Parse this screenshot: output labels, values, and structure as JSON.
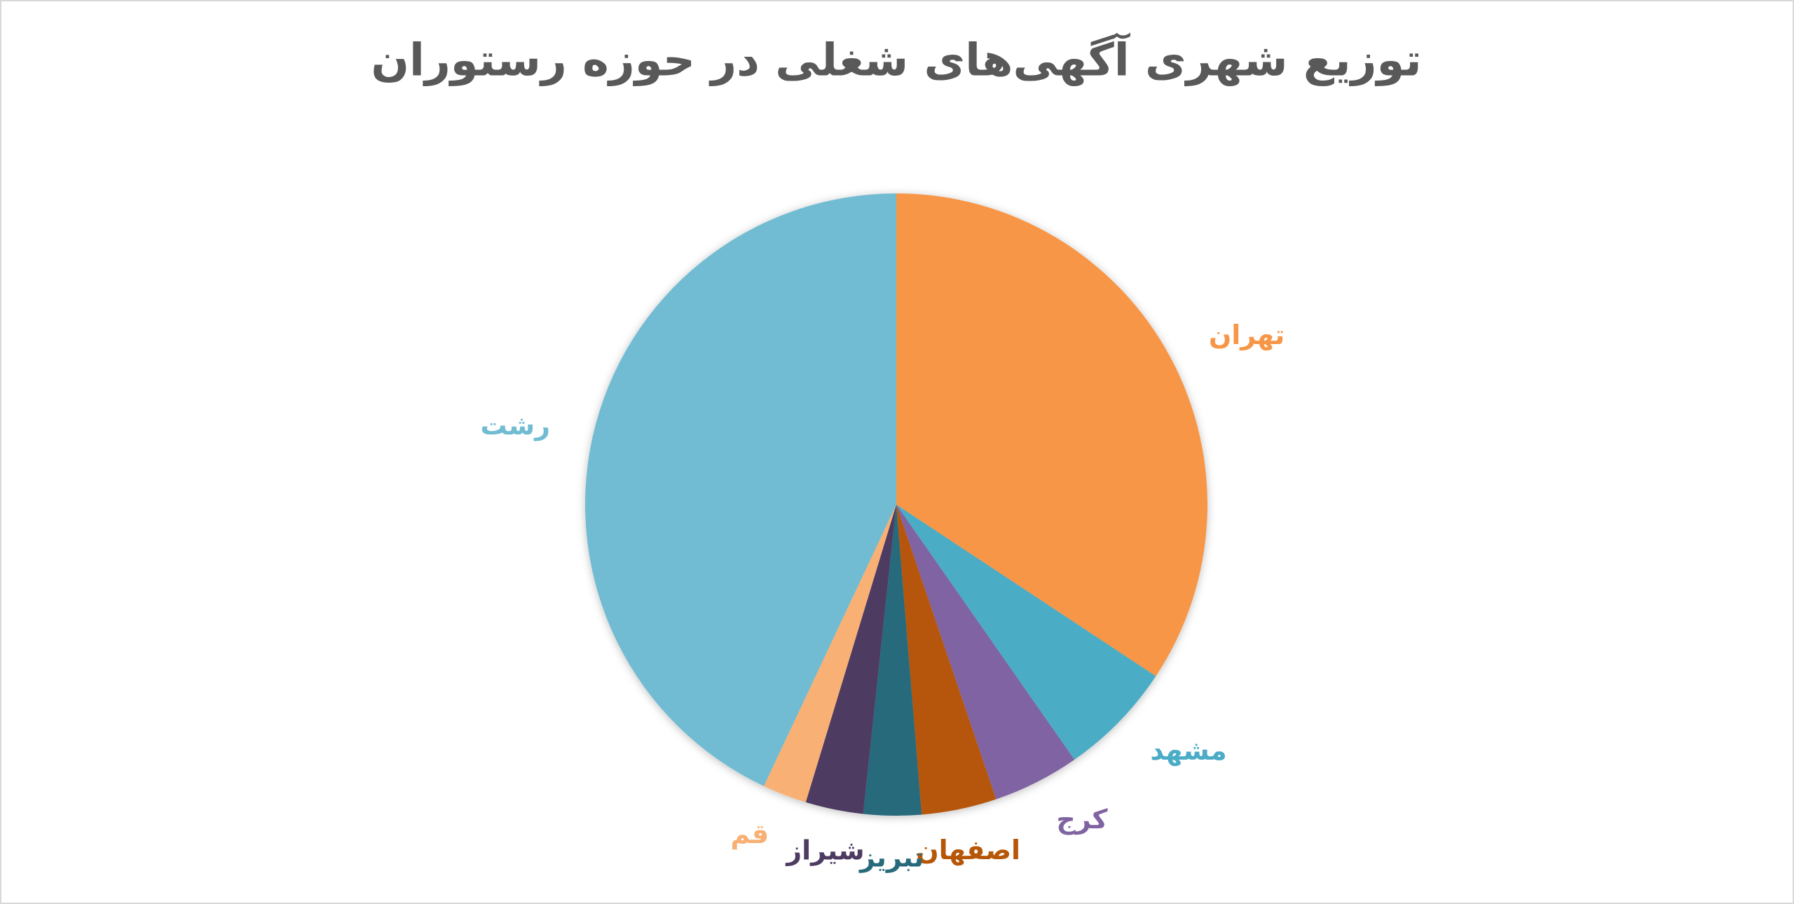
{
  "chart_data": {
    "type": "pie",
    "title": "توزیع شهری آگهی‌های شغلی در حوزه رستوران",
    "categories": [
      "تهران",
      "مشهد",
      "کرج",
      "اصفهان",
      "تبریز",
      "شیراز",
      "قم",
      "رشت"
    ],
    "values": [
      34.3,
      6.0,
      4.5,
      3.9,
      3.0,
      3.0,
      2.3,
      43.0
    ],
    "colors": [
      "#F79646",
      "#4BACC6",
      "#8064A2",
      "#B65708",
      "#276A7C",
      "#4D3B62",
      "#F9B074",
      "#71BCD2"
    ]
  }
}
